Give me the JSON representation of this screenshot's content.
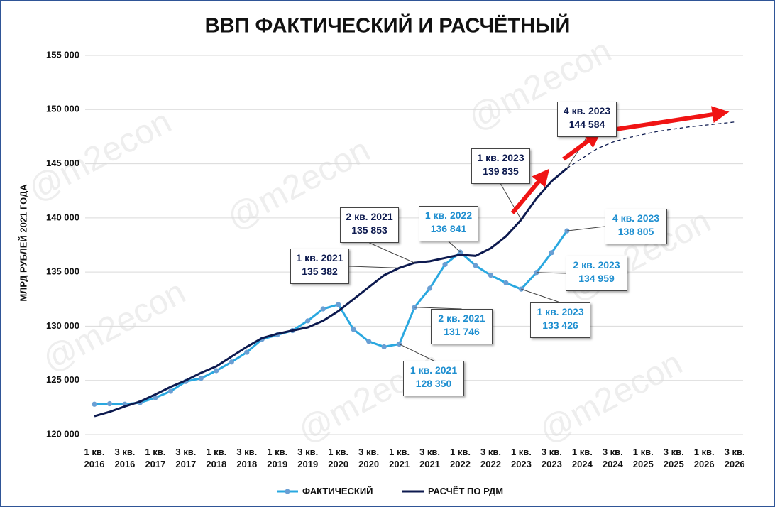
{
  "chart_data": {
    "type": "line",
    "title": "ВВП ФАКТИЧЕСКИЙ И РАСЧЁТНЫЙ",
    "y_label": "МЛРД РУБЛЕЙ 2021 ГОДА",
    "watermark": "@m2econ",
    "categories": [
      "1 кв. 2016",
      null,
      "3 кв. 2016",
      null,
      "1 кв. 2017",
      null,
      "3 кв. 2017",
      null,
      "1 кв. 2018",
      null,
      "3 кв. 2018",
      null,
      "1 кв. 2019",
      null,
      "3 кв. 2019",
      null,
      "1 кв. 2020",
      null,
      "3 кв. 2020",
      null,
      "1 кв. 2021",
      null,
      "3 кв. 2021",
      null,
      "1 кв. 2022",
      null,
      "3 кв. 2022",
      null,
      "1 кв. 2023",
      null,
      "3 кв. 2023",
      null,
      "1 кв. 2024",
      null,
      "3 кв. 2024",
      null,
      "1 кв. 2025",
      null,
      "3 кв. 2025",
      null,
      "1 кв. 2026",
      null,
      "3 кв. 2026"
    ],
    "ylim": [
      120000,
      155000
    ],
    "yticks": [
      {
        "value": 120000,
        "label": "120 000"
      },
      {
        "value": 125000,
        "label": "125 000"
      },
      {
        "value": 130000,
        "label": "130 000"
      },
      {
        "value": 135000,
        "label": "135 000"
      },
      {
        "value": 140000,
        "label": "140 000"
      },
      {
        "value": 145000,
        "label": "145 000"
      },
      {
        "value": 150000,
        "label": "150 000"
      },
      {
        "value": 155000,
        "label": "155 000"
      }
    ],
    "grid": true,
    "legend": "bottom",
    "series": [
      {
        "name": "ФАКТИЧЕСКИЙ",
        "color": "#2aa8e0",
        "marker_color": "#6a9fd4",
        "markers": true,
        "values": [
          122800,
          122850,
          122800,
          122950,
          123400,
          124000,
          124900,
          125200,
          125900,
          126700,
          127600,
          128800,
          129200,
          129600,
          130500,
          131600,
          132000,
          129700,
          128600,
          128100,
          128350,
          131746,
          133500,
          135700,
          136841,
          135600,
          134700,
          134000,
          133426,
          134959,
          136800,
          138805,
          null,
          null,
          null,
          null,
          null,
          null,
          null,
          null,
          null,
          null,
          null
        ],
        "value_labels": [
          null,
          null,
          null,
          null,
          null,
          null,
          null,
          null,
          null,
          null,
          null,
          null,
          null,
          null,
          null,
          null,
          null,
          null,
          null,
          null,
          "128 350",
          "131 746",
          null,
          null,
          "136 841",
          null,
          null,
          null,
          "133 426",
          "134 959",
          null,
          "138 805",
          null,
          null,
          null,
          null,
          null,
          null,
          null,
          null,
          null,
          null,
          null
        ],
        "label_periods": [
          null,
          null,
          null,
          null,
          null,
          null,
          null,
          null,
          null,
          null,
          null,
          null,
          null,
          null,
          null,
          null,
          null,
          null,
          null,
          null,
          "1 кв. 2021",
          "2 кв. 2021",
          null,
          null,
          "1 кв. 2022",
          null,
          null,
          null,
          "1 кв. 2023",
          "2 кв. 2023",
          null,
          "4 кв. 2023",
          null,
          null,
          null,
          null,
          null,
          null,
          null,
          null,
          null,
          null,
          null
        ]
      },
      {
        "name": "РАСЧЁТ ПО РДМ",
        "color": "#0d1a4f",
        "values": [
          121700,
          122100,
          122600,
          123050,
          123700,
          124400,
          125000,
          125700,
          126300,
          127200,
          128100,
          128900,
          129300,
          129600,
          129900,
          130500,
          131400,
          132500,
          133600,
          134700,
          135382,
          135853,
          136000,
          136300,
          136600,
          136500,
          137200,
          138300,
          139835,
          141800,
          143400,
          144584,
          null,
          null,
          null,
          null,
          null,
          null,
          null,
          null,
          null,
          null,
          null
        ],
        "value_labels": [
          null,
          null,
          null,
          null,
          null,
          null,
          null,
          null,
          null,
          null,
          null,
          null,
          null,
          null,
          null,
          null,
          null,
          null,
          null,
          null,
          "135 382",
          "135 853",
          null,
          null,
          null,
          null,
          null,
          null,
          "139 835",
          null,
          null,
          "144 584",
          null,
          null,
          null,
          null,
          null,
          null,
          null,
          null,
          null,
          null,
          null
        ],
        "label_periods": [
          null,
          null,
          null,
          null,
          null,
          null,
          null,
          null,
          null,
          null,
          null,
          null,
          null,
          null,
          null,
          null,
          null,
          null,
          null,
          null,
          "1 кв. 2021",
          "2 кв. 2021",
          null,
          null,
          null,
          null,
          null,
          null,
          "1 кв. 2023",
          null,
          null,
          "4 кв. 2023",
          null,
          null,
          null,
          null,
          null,
          null,
          null,
          null,
          null,
          null,
          null
        ]
      },
      {
        "color": "#0d1a4f",
        "dashed": true,
        "values": [
          null,
          null,
          null,
          null,
          null,
          null,
          null,
          null,
          null,
          null,
          null,
          null,
          null,
          null,
          null,
          null,
          null,
          null,
          null,
          null,
          null,
          null,
          null,
          null,
          null,
          null,
          null,
          null,
          null,
          null,
          null,
          144584,
          145500,
          146400,
          147000,
          147400,
          147700,
          148000,
          148200,
          148400,
          148550,
          148700,
          148850
        ]
      }
    ]
  }
}
